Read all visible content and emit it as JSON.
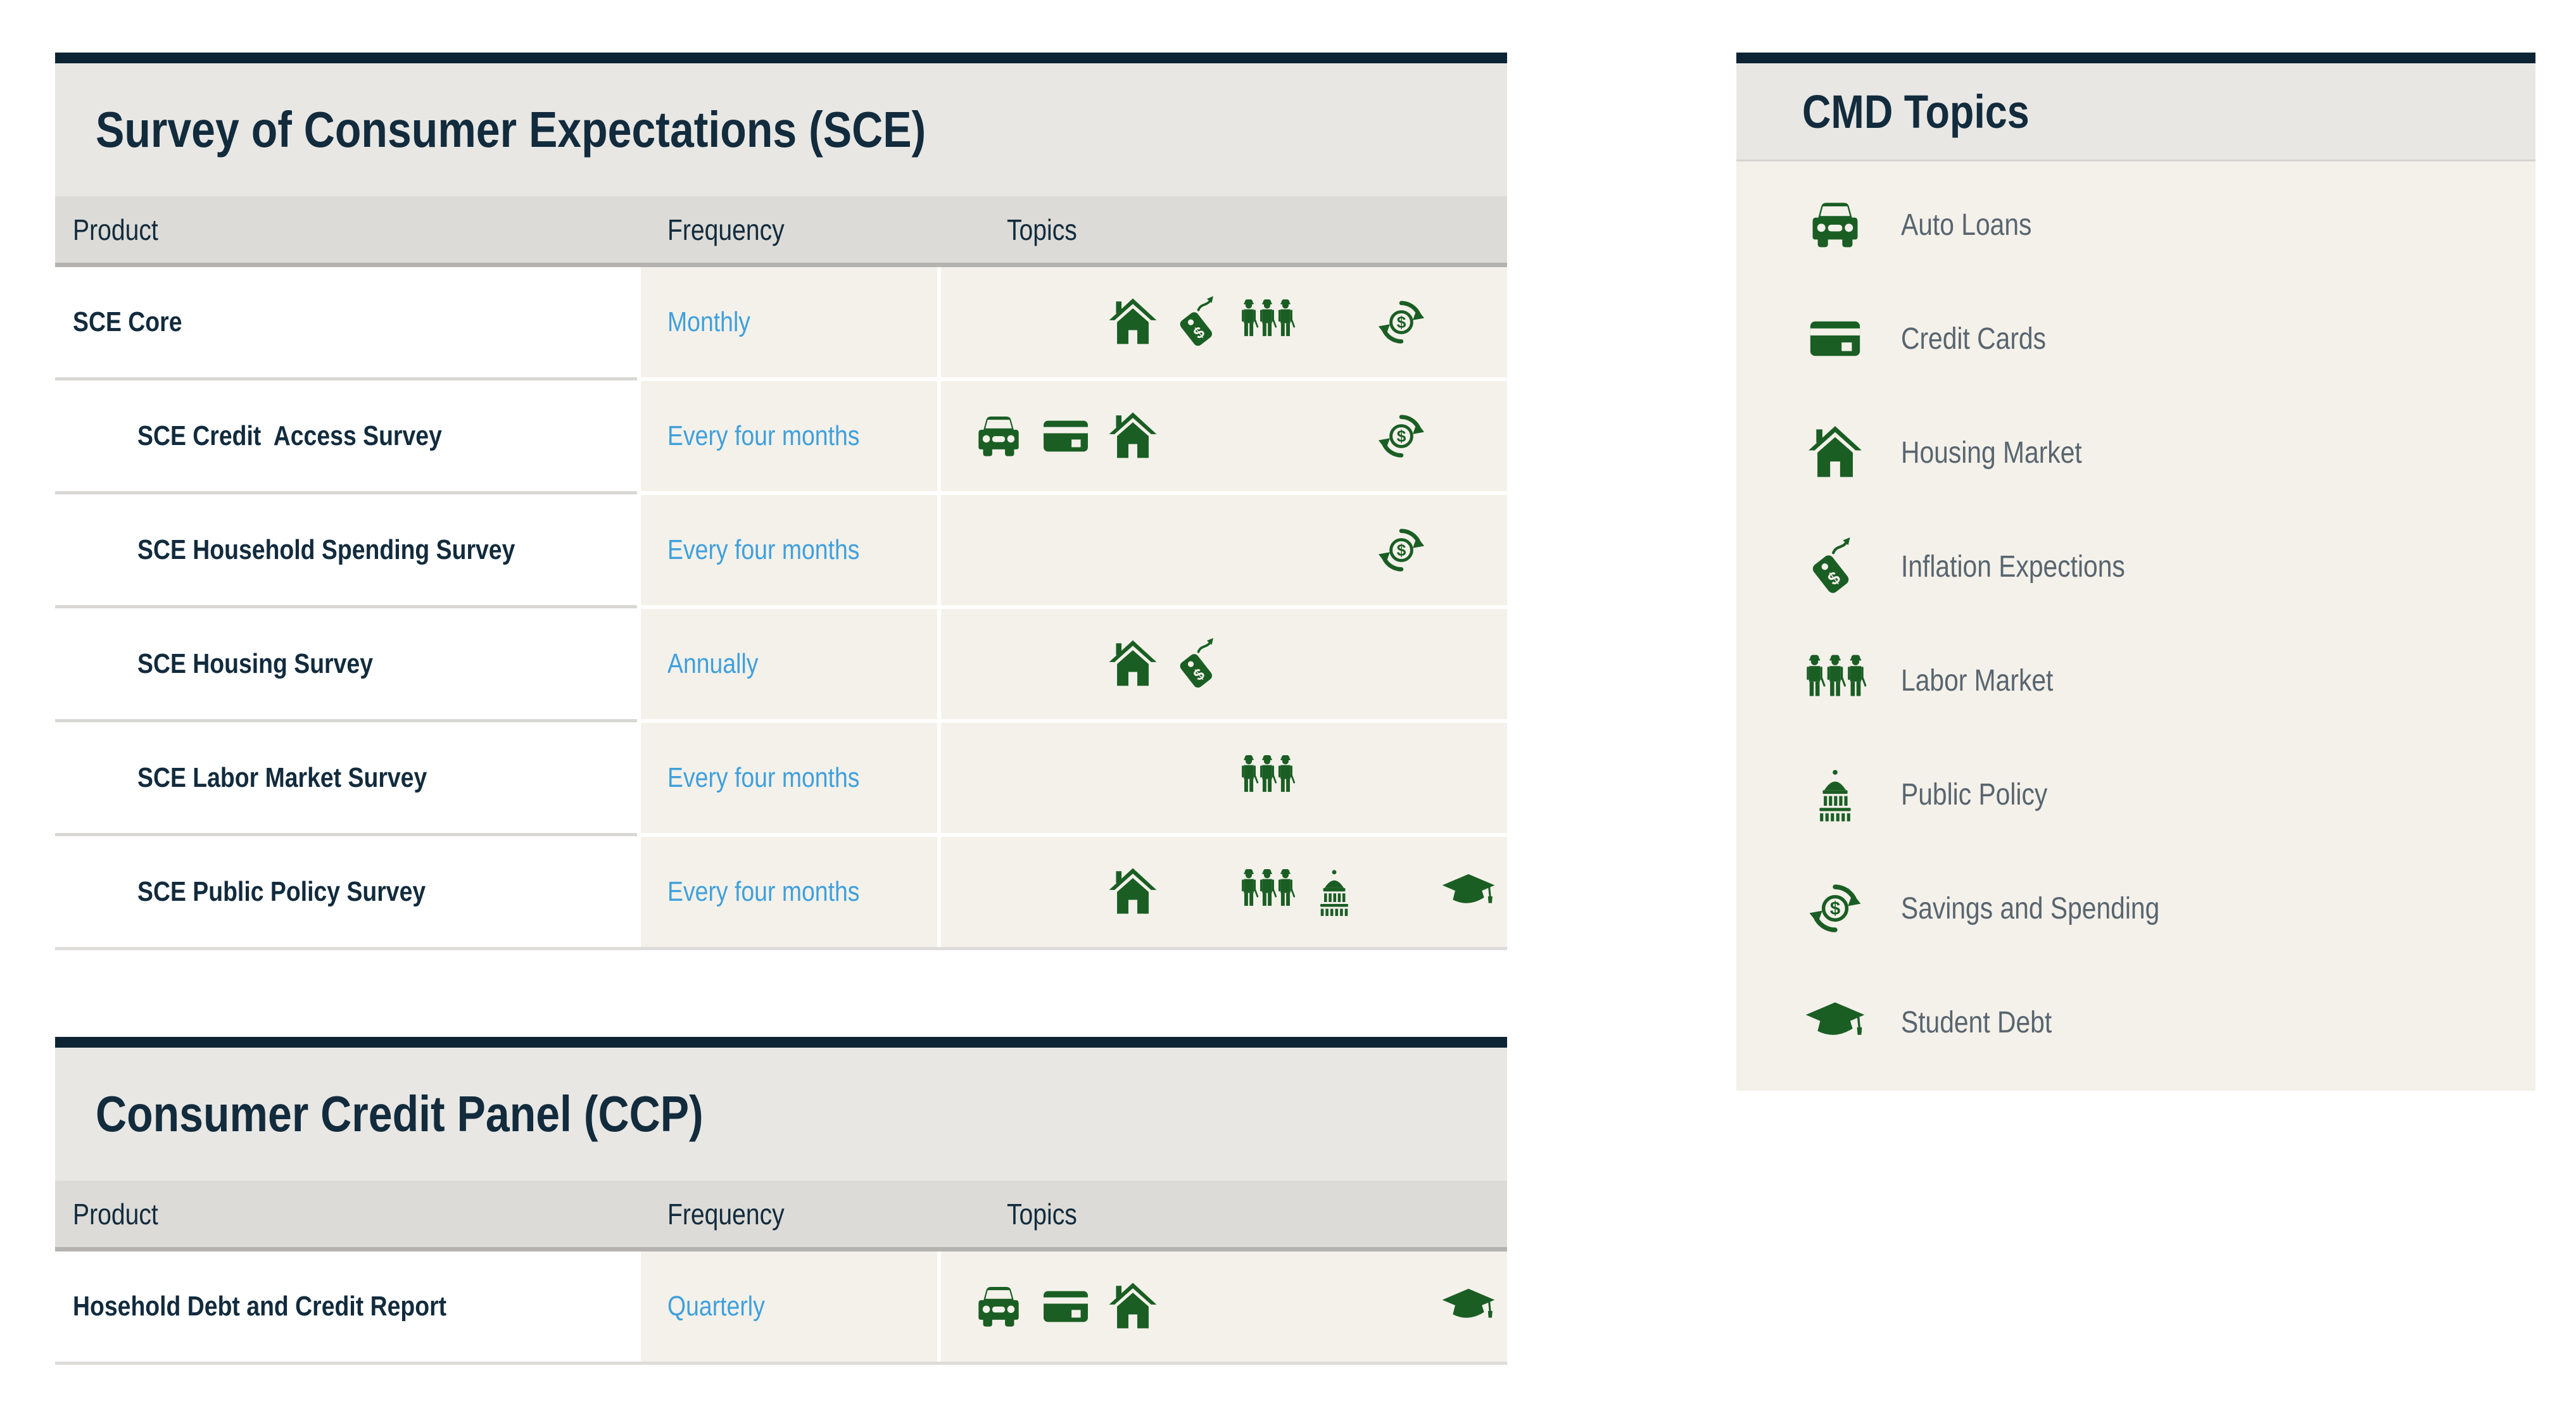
{
  "palette": {
    "navy_bar": "#0d2434",
    "heading_text": "#122b3d",
    "title_band": "#e8e7e4",
    "table_header_bg": "#dcdbd7",
    "beige_cell": "#f4f1ea",
    "frequency_blue": "#3fa0dc",
    "icon_green": "#1a5e24",
    "legend_text": "#58656f"
  },
  "topic_slots": [
    "auto-loans",
    "credit-cards",
    "housing-market",
    "inflation-expections",
    "labor-market",
    "public-policy",
    "savings-and-spending",
    "student-debt"
  ],
  "sce": {
    "title": "Survey of Consumer Expectations (SCE)",
    "headers": {
      "product": "Product",
      "frequency": "Frequency",
      "topics": "Topics"
    },
    "rows": [
      {
        "product": "SCE Core",
        "indent": false,
        "frequency": "Monthly",
        "topics": [
          "housing-market",
          "inflation-expections",
          "labor-market",
          "savings-and-spending"
        ]
      },
      {
        "product": "SCE Credit  Access Survey",
        "indent": true,
        "frequency": "Every four months",
        "topics": [
          "auto-loans",
          "credit-cards",
          "housing-market",
          "savings-and-spending"
        ]
      },
      {
        "product": "SCE Household Spending Survey",
        "indent": true,
        "frequency": "Every four months",
        "topics": [
          "savings-and-spending"
        ]
      },
      {
        "product": "SCE Housing Survey",
        "indent": true,
        "frequency": "Annually",
        "topics": [
          "housing-market",
          "inflation-expections"
        ]
      },
      {
        "product": "SCE Labor Market Survey",
        "indent": true,
        "frequency": "Every four months",
        "topics": [
          "labor-market"
        ]
      },
      {
        "product": "SCE Public Policy Survey",
        "indent": true,
        "frequency": "Every four months",
        "topics": [
          "housing-market",
          "labor-market",
          "public-policy",
          "student-debt"
        ]
      }
    ]
  },
  "ccp": {
    "title": "Consumer Credit Panel (CCP)",
    "headers": {
      "product": "Product",
      "frequency": "Frequency",
      "topics": "Topics"
    },
    "rows": [
      {
        "product": "Hosehold Debt and Credit Report",
        "indent": false,
        "frequency": "Quarterly",
        "topics": [
          "auto-loans",
          "credit-cards",
          "housing-market",
          "student-debt"
        ]
      }
    ]
  },
  "cmd": {
    "title": "CMD Topics",
    "items": [
      {
        "icon": "auto-loans",
        "label": "Auto Loans"
      },
      {
        "icon": "credit-cards",
        "label": "Credit Cards"
      },
      {
        "icon": "housing-market",
        "label": "Housing Market"
      },
      {
        "icon": "inflation-expections",
        "label": "Inflation Expections"
      },
      {
        "icon": "labor-market",
        "label": "Labor Market"
      },
      {
        "icon": "public-policy",
        "label": "Public Policy"
      },
      {
        "icon": "savings-and-spending",
        "label": "Savings and Spending"
      },
      {
        "icon": "student-debt",
        "label": "Student Debt"
      }
    ]
  }
}
